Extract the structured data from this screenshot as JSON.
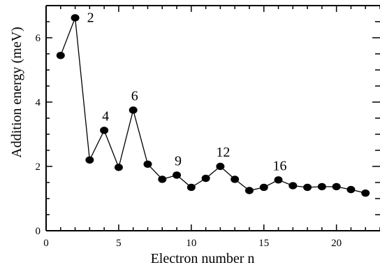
{
  "chart_data": {
    "type": "line",
    "xlabel": "Electron number  n",
    "ylabel": "Addition energy  (meV)",
    "xlim": [
      0,
      23
    ],
    "ylim": [
      0,
      7
    ],
    "xticks": [
      0,
      5,
      10,
      15,
      20
    ],
    "yticks": [
      0,
      2,
      4,
      6
    ],
    "grid": false,
    "series": [
      {
        "x": [
          1,
          2,
          3,
          4,
          5,
          6,
          7,
          8,
          9,
          10,
          11,
          12,
          13,
          14,
          15,
          16,
          17,
          18,
          19,
          20,
          21,
          22
        ],
        "y": [
          5.45,
          6.62,
          2.2,
          3.12,
          1.97,
          3.75,
          2.07,
          1.6,
          1.73,
          1.35,
          1.63,
          2.0,
          1.6,
          1.25,
          1.35,
          1.58,
          1.4,
          1.35,
          1.37,
          1.37,
          1.28,
          1.17
        ]
      }
    ],
    "annotations": [
      {
        "text": "2",
        "x": 2
      },
      {
        "text": "4",
        "x": 4
      },
      {
        "text": "6",
        "x": 6
      },
      {
        "text": "9",
        "x": 9
      },
      {
        "text": "12",
        "x": 12
      },
      {
        "text": "16",
        "x": 16
      }
    ]
  }
}
